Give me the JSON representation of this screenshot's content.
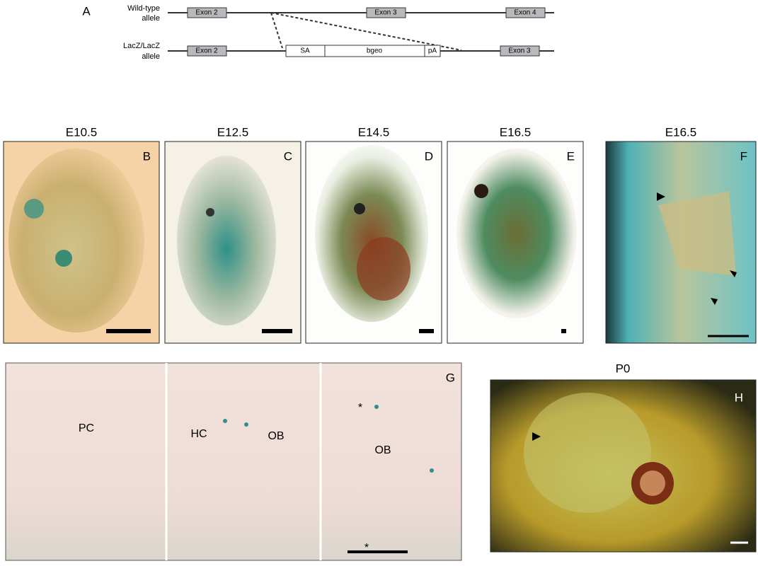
{
  "panel_a": {
    "label": "A",
    "wild_type": {
      "label_lines": [
        "Wild-type",
        "allele"
      ],
      "exons": [
        "Exon 2",
        "Exon 3",
        "Exon 4"
      ]
    },
    "lacz": {
      "label_lines": [
        "LacZ/LacZ",
        "allele"
      ],
      "exons": [
        "Exon 2",
        "Exon 3"
      ],
      "cassette": [
        "SA",
        "bgeo",
        "pA"
      ]
    }
  },
  "panels": [
    {
      "label": "B",
      "title": "E10.5"
    },
    {
      "label": "C",
      "title": "E12.5"
    },
    {
      "label": "D",
      "title": "E14.5"
    },
    {
      "label": "E",
      "title": "E16.5"
    },
    {
      "label": "F",
      "title": "E16.5"
    }
  ],
  "panel_g": {
    "label": "G",
    "annotations": [
      "PC",
      "HC",
      "OB",
      "OB",
      "*",
      "*"
    ]
  },
  "panel_h": {
    "label": "H",
    "title": "P0"
  }
}
